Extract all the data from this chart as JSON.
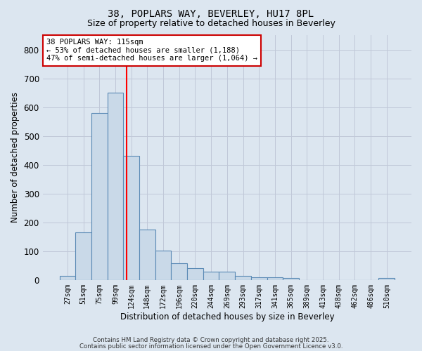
{
  "title1": "38, POPLARS WAY, BEVERLEY, HU17 8PL",
  "title2": "Size of property relative to detached houses in Beverley",
  "xlabel": "Distribution of detached houses by size in Beverley",
  "ylabel": "Number of detached properties",
  "bin_labels": [
    "27sqm",
    "51sqm",
    "75sqm",
    "99sqm",
    "124sqm",
    "148sqm",
    "172sqm",
    "196sqm",
    "220sqm",
    "244sqm",
    "269sqm",
    "293sqm",
    "317sqm",
    "341sqm",
    "365sqm",
    "389sqm",
    "413sqm",
    "438sqm",
    "462sqm",
    "486sqm",
    "510sqm"
  ],
  "bar_values": [
    15,
    165,
    580,
    650,
    430,
    175,
    103,
    57,
    40,
    30,
    30,
    15,
    10,
    10,
    8,
    0,
    0,
    0,
    0,
    0,
    6
  ],
  "bar_color": "#c9d9e8",
  "bar_edge_color": "#5a8ab5",
  "bar_edge_width": 0.8,
  "grid_color": "#c0c8d8",
  "bg_color": "#dce6f0",
  "red_line_x": 3.72,
  "annotation_text": "38 POPLARS WAY: 115sqm\n← 53% of detached houses are smaller (1,188)\n47% of semi-detached houses are larger (1,064) →",
  "annotation_box_color": "#ffffff",
  "annotation_box_edge": "#cc0000",
  "ylim": [
    0,
    850
  ],
  "yticks": [
    0,
    100,
    200,
    300,
    400,
    500,
    600,
    700,
    800
  ],
  "footnote1": "Contains HM Land Registry data © Crown copyright and database right 2025.",
  "footnote2": "Contains public sector information licensed under the Open Government Licence v3.0."
}
